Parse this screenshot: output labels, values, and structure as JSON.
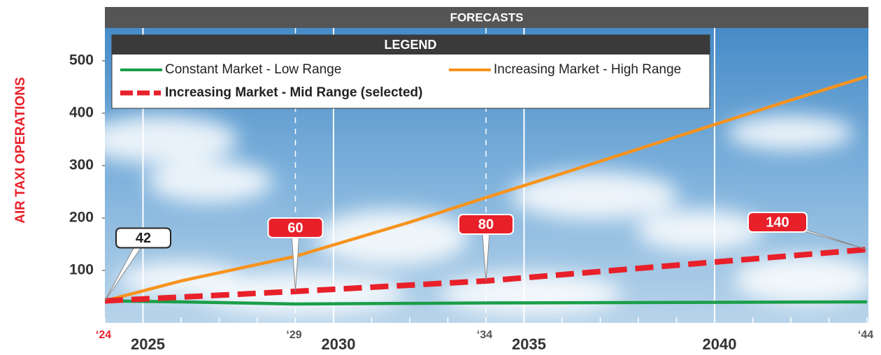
{
  "chart_data": {
    "type": "line",
    "title": "FORECASTS",
    "y_label": "AIR TAXI OPERATIONS",
    "legend_title": "LEGEND",
    "xlim": [
      2024,
      2044
    ],
    "xticks": [
      2025,
      2030,
      2035,
      2040
    ],
    "year_marks": [
      {
        "value": 2024,
        "label": "‘24"
      },
      {
        "value": 2029,
        "label": "‘29"
      },
      {
        "value": 2034,
        "label": "‘34"
      },
      {
        "value": 2044,
        "label": "‘44"
      }
    ],
    "ylim": [
      0,
      600
    ],
    "yticks": [
      100,
      200,
      300,
      400,
      500
    ],
    "grid": "x",
    "series": [
      {
        "name": "Constant Market - Low Range",
        "color": "#1a9e48",
        "dashed": false,
        "x": [
          2024,
          2026,
          2029,
          2034,
          2039,
          2044
        ],
        "values": [
          42,
          40,
          36,
          38,
          39,
          40
        ]
      },
      {
        "name": "Increasing Market - High Range",
        "color": "#f7931e",
        "dashed": false,
        "x": [
          2024,
          2026,
          2029,
          2032,
          2034,
          2036,
          2039,
          2042,
          2044
        ],
        "values": [
          42,
          80,
          127,
          192,
          239,
          285,
          355,
          425,
          470
        ]
      },
      {
        "name": "Increasing Market - Mid Range (selected)",
        "color": "#e8202a",
        "dashed": true,
        "x": [
          2024,
          2029,
          2034,
          2044
        ],
        "values": [
          42,
          60,
          80,
          140
        ]
      }
    ]
  }
}
